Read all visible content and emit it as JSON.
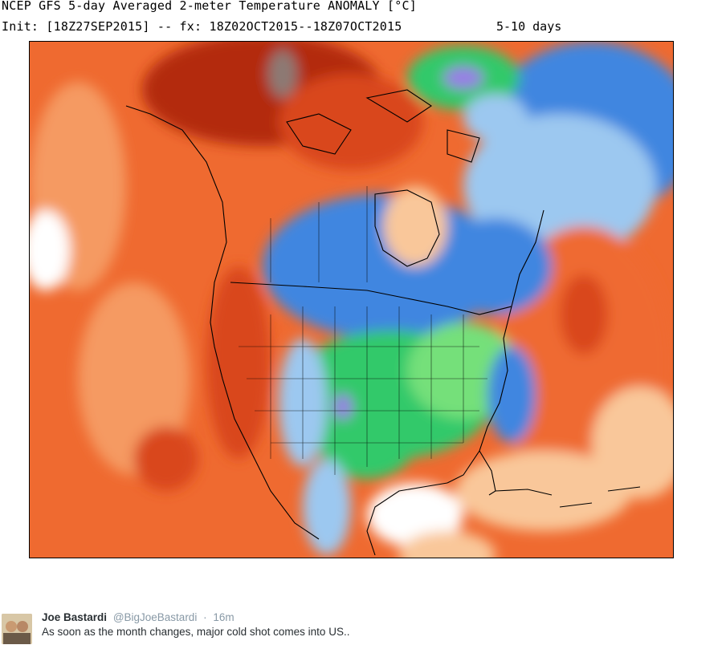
{
  "header": {
    "line1": "NCEP GFS 5-day Averaged 2-meter Temperature ANOMALY [°C]",
    "line2": "Init: [18Z27SEP2015] -- fx: 18Z02OCT2015--18Z07OCT2015",
    "range_label": "5-10 days"
  },
  "map": {
    "colors": {
      "deep_red": "#b32a10",
      "red": "#d9461c",
      "orange": "#ef6a30",
      "light_orange": "#f59a62",
      "peach": "#f9c79a",
      "white": "#ffffff",
      "light_blue": "#9cc8f0",
      "blue": "#3f86e0",
      "green": "#33c96a",
      "light_green": "#74e07a",
      "purple": "#9a7be8",
      "gray": "#8c7a74"
    }
  },
  "tweet": {
    "name": "Joe Bastardi",
    "handle": "@BigJoeBastardi",
    "separator": "·",
    "time": "16m",
    "text": "As soon as the month changes, major cold shot comes into US.."
  }
}
